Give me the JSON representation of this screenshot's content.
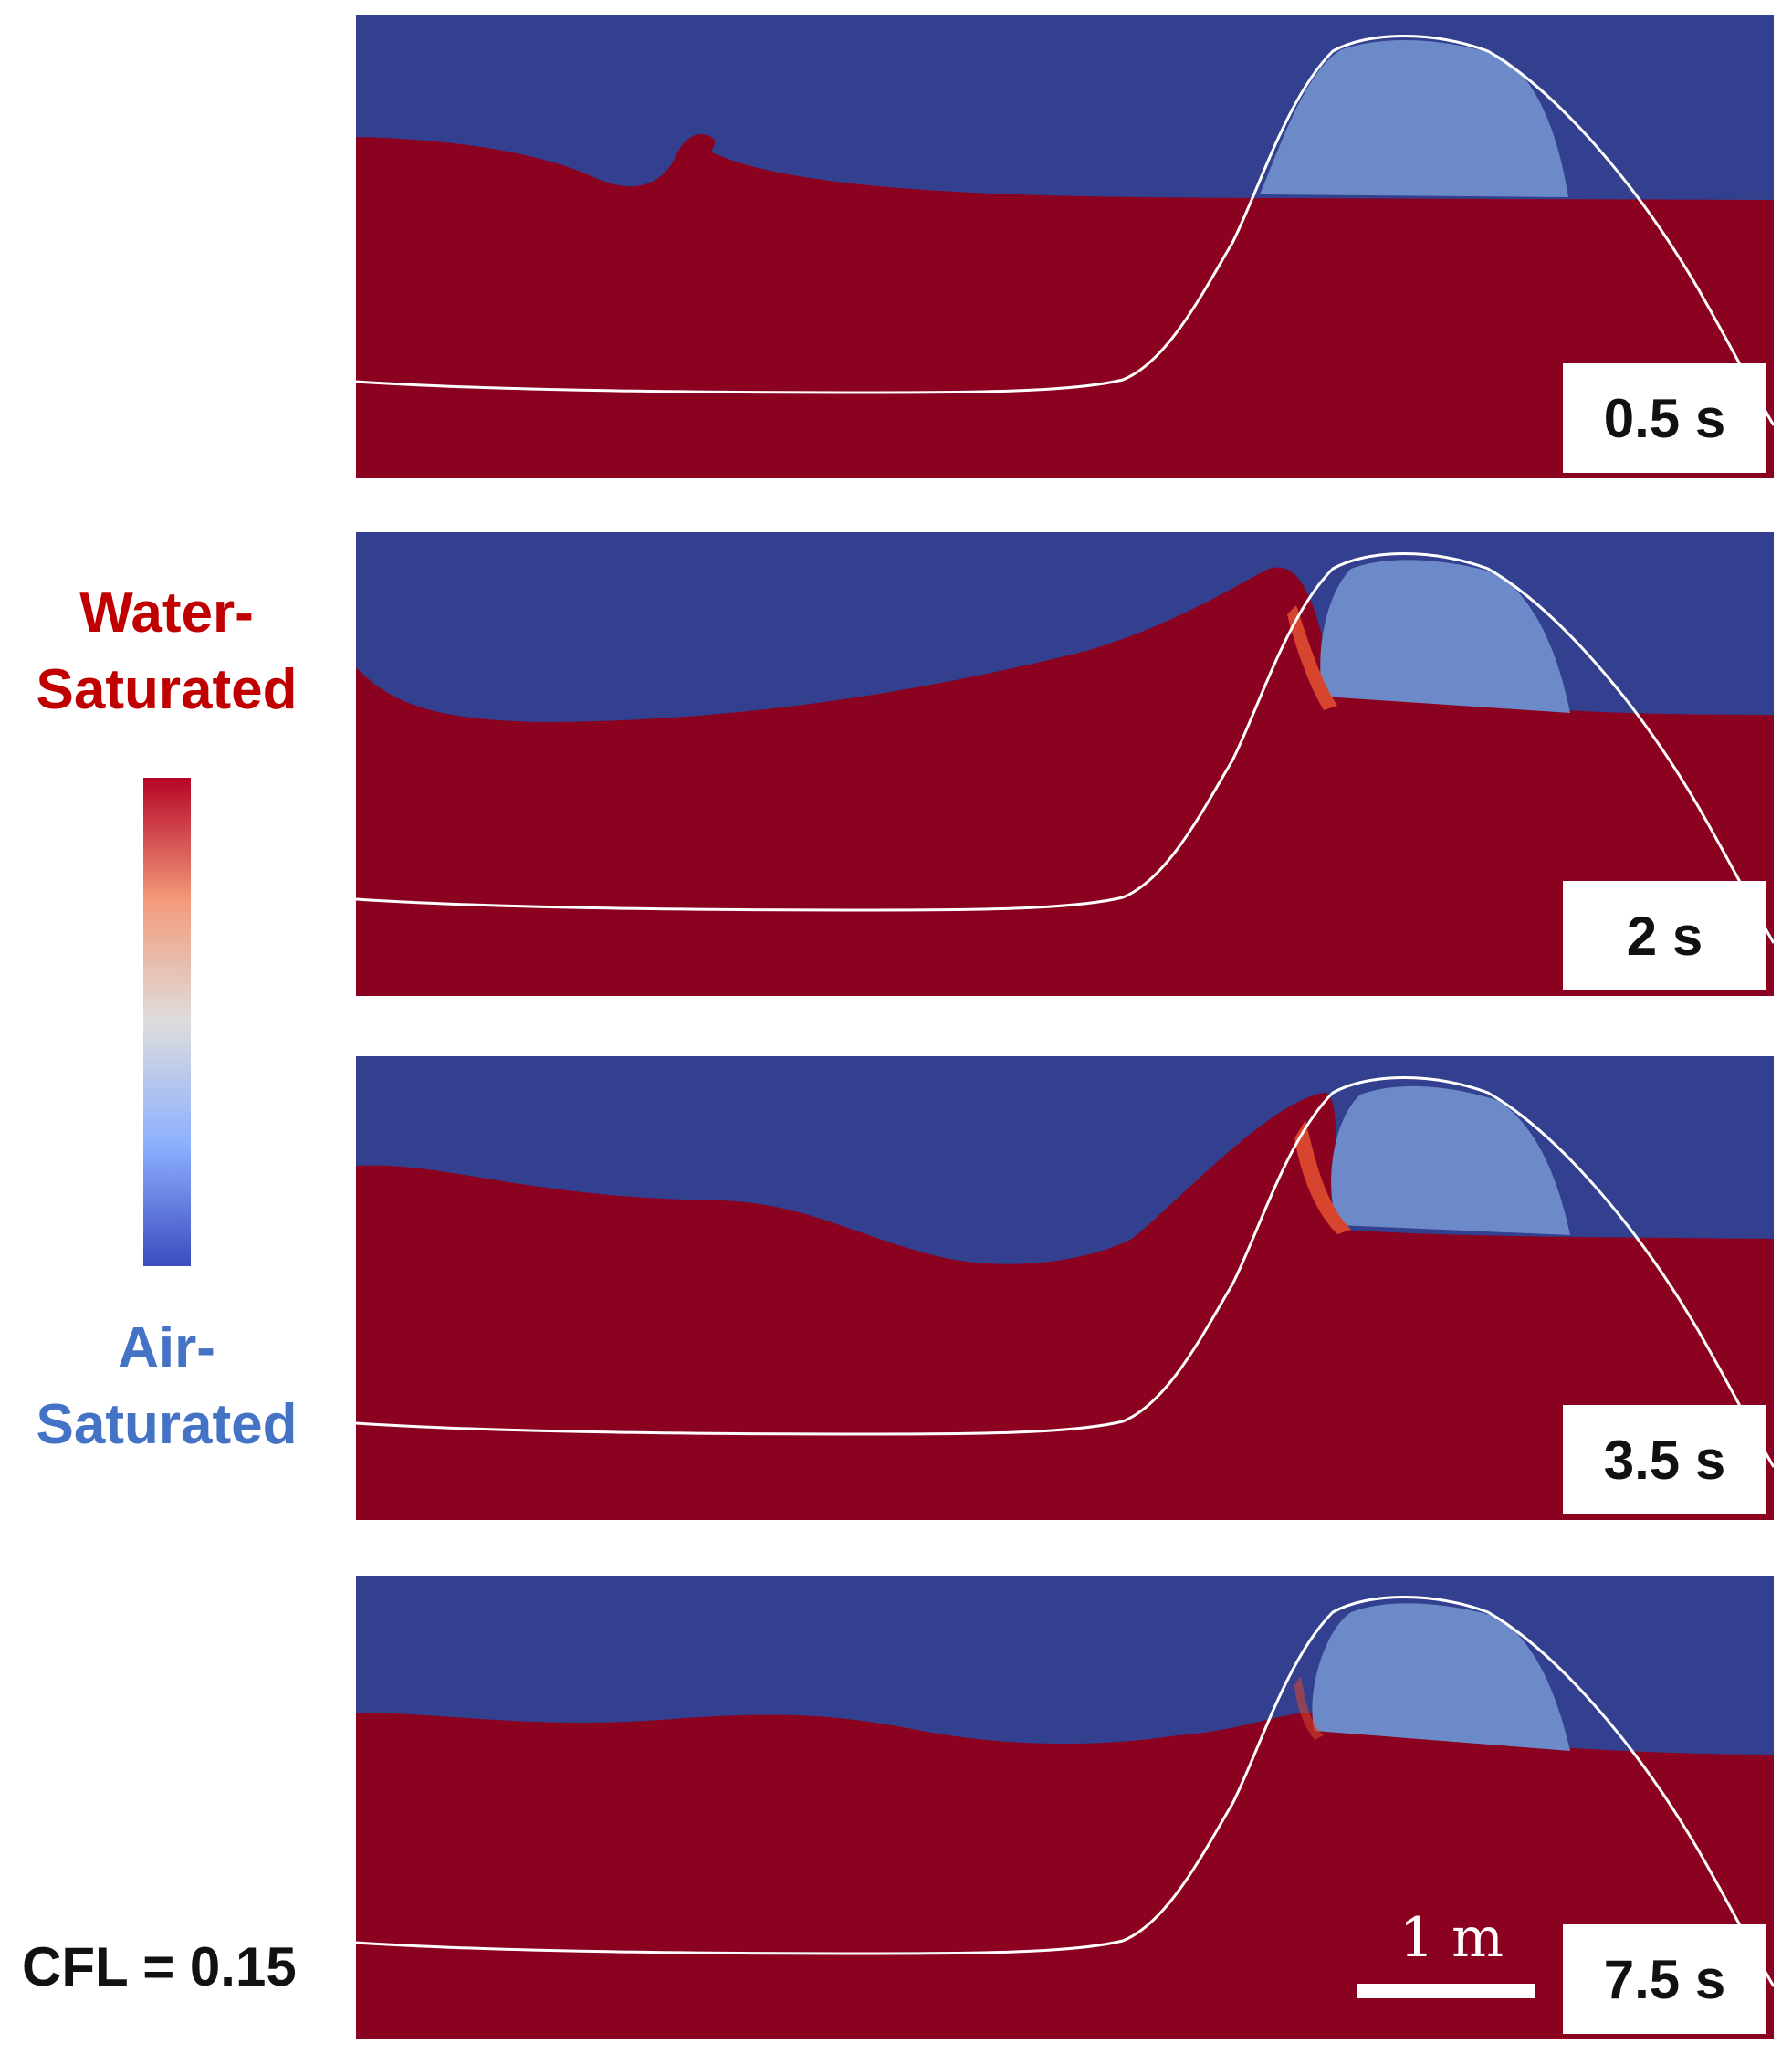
{
  "legend": {
    "top_label_line1": "Water-",
    "top_label_line2": "Saturated",
    "bottom_label_line1": "Air-",
    "bottom_label_line2": "Saturated",
    "top_color": "#c00000",
    "bottom_color": "#4472c4"
  },
  "colorscale": {
    "name": "cool-to-warm",
    "stops": [
      "#3b4cc0",
      "#8db0fe",
      "#dddddd",
      "#f49a7b",
      "#b40426"
    ]
  },
  "colors": {
    "water_saturated": "#8b0220",
    "air": "#33408f",
    "air_saturated_soil": "#6d8ac8",
    "transition": "#d8452e",
    "contour": "#ffffff"
  },
  "panels": [
    {
      "time_label": "0.5 s"
    },
    {
      "time_label": "2 s"
    },
    {
      "time_label": "3.5 s"
    },
    {
      "time_label": "7.5 s"
    }
  ],
  "cfl_label": "CFL = 0.15",
  "scale_bar": {
    "label": "1 m"
  }
}
